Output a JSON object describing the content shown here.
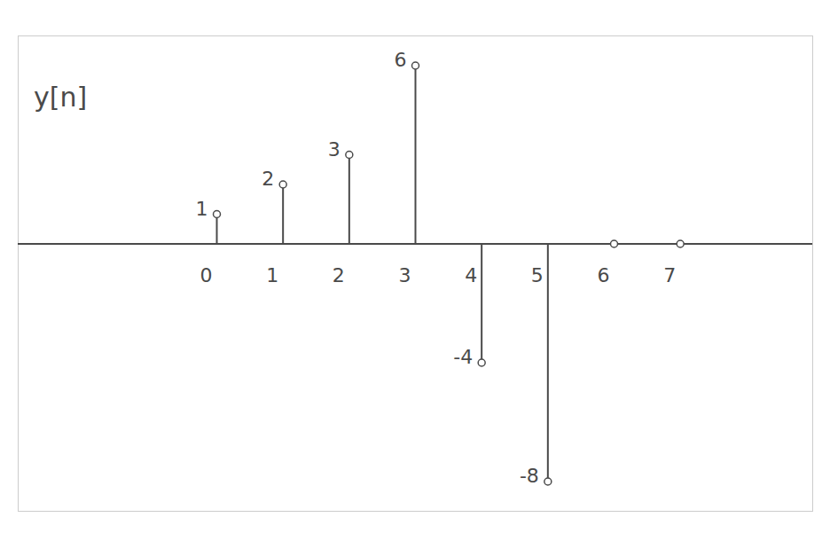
{
  "chart_data": {
    "type": "stem",
    "title": "y[n]",
    "x": [
      0,
      1,
      2,
      3,
      4,
      5,
      6,
      7
    ],
    "values": [
      1,
      2,
      3,
      6,
      -4,
      -8,
      0,
      0
    ],
    "value_labels": [
      "1",
      "2",
      "3",
      "6",
      "-4",
      "-8",
      null,
      null
    ],
    "data_labels": true,
    "xlim": [
      -3,
      9
    ],
    "xticks": [
      0,
      1,
      2,
      3,
      4,
      5,
      6,
      7
    ],
    "ylim": [
      -9,
      7
    ],
    "tick_labels": "x",
    "color": "#4a4a4a",
    "marker": "circle"
  }
}
